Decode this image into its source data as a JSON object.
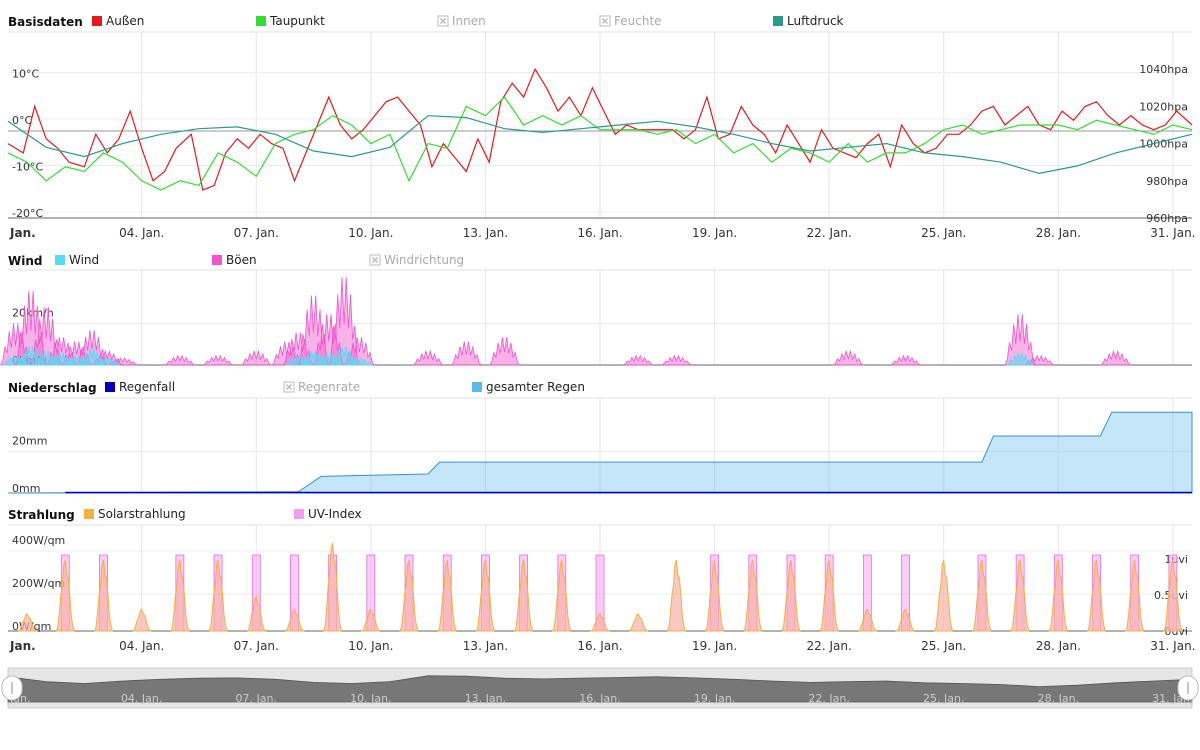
{
  "x_ticks": [
    "Jan.",
    "04. Jan.",
    "07. Jan.",
    "10. Jan.",
    "13. Jan.",
    "16. Jan.",
    "19. Jan.",
    "22. Jan.",
    "25. Jan.",
    "28. Jan.",
    "31. Jan."
  ],
  "chart_data": [
    {
      "type": "line",
      "title": "Basisdaten",
      "x_unit": "day of January",
      "xlim": [
        1,
        32
      ],
      "legend": [
        {
          "name": "Außen",
          "color": "#e31a1c",
          "enabled": true
        },
        {
          "name": "Taupunkt",
          "color": "#33dd33",
          "enabled": true
        },
        {
          "name": "Innen",
          "color": "#bbbbbb",
          "enabled": false
        },
        {
          "name": "Feuchte",
          "color": "#bbbbbb",
          "enabled": false
        },
        {
          "name": "Luftdruck",
          "color": "#2a9a8a",
          "enabled": true
        }
      ],
      "y_left": {
        "ticks": [
          "10°C",
          "0°C",
          "-10°C",
          "-20°C"
        ],
        "ylim": [
          -20,
          20
        ]
      },
      "y_right": {
        "ticks": [
          "1040hpa",
          "1020hpa",
          "1000hpa",
          "980hpa",
          "960hpa"
        ],
        "ylim": [
          960,
          1060
        ]
      },
      "series": [
        {
          "name": "Außen",
          "axis": "left",
          "color": "#e31a1c",
          "x": [
            1,
            1.4,
            1.7,
            2,
            2.3,
            2.6,
            3,
            3.3,
            3.6,
            3.9,
            4.2,
            4.5,
            4.8,
            5.1,
            5.4,
            5.8,
            6.1,
            6.4,
            6.7,
            7,
            7.3,
            7.6,
            7.9,
            8.2,
            8.5,
            8.8,
            9.1,
            9.4,
            9.7,
            10,
            10.3,
            10.6,
            10.9,
            11.2,
            11.5,
            11.8,
            12.1,
            12.4,
            12.7,
            13,
            13.3,
            13.6,
            13.9,
            14.2,
            14.5,
            14.8,
            15.1,
            15.4,
            15.7,
            16,
            16.3,
            16.6,
            16.9,
            17.2,
            17.5,
            17.8,
            18.1,
            18.4,
            18.7,
            19,
            19.3,
            19.6,
            19.9,
            20.2,
            20.5,
            20.8,
            21.1,
            21.4,
            21.7,
            22,
            22.3,
            22.6,
            22.9,
            23.2,
            23.5,
            23.8,
            24.1,
            24.4,
            24.7,
            25,
            25.3,
            25.6,
            25.9,
            26.2,
            26.5,
            26.8,
            27.1,
            27.4,
            27.7,
            28,
            28.3,
            28.6,
            28.9,
            29.2,
            29.5,
            29.8,
            30.1,
            30.4,
            30.7,
            31,
            31.3,
            31.6,
            32
          ],
          "y": [
            -4,
            -6,
            4,
            -3,
            -5,
            -8,
            -9,
            -2,
            -6,
            -3,
            3,
            -5,
            -12,
            -10,
            -5,
            -2,
            -14,
            -13,
            -6,
            -3,
            -5,
            -2,
            -4,
            -5,
            -12,
            -6,
            0,
            6,
            0,
            -3,
            -1,
            2,
            5,
            6,
            3,
            0,
            -9,
            -4,
            -7,
            -10,
            -3,
            -8,
            5,
            9,
            6,
            12,
            8,
            3,
            6,
            2,
            8,
            3,
            -2,
            0,
            -1,
            -1,
            -1,
            -1,
            -3,
            -1,
            6,
            -3,
            -2,
            4,
            0,
            -2,
            -6,
            0,
            -4,
            -8,
            -1,
            -5,
            -6,
            -7,
            -4,
            -2,
            -9,
            0,
            -4,
            -6,
            -5,
            -2,
            -2,
            0,
            3,
            4,
            0,
            2,
            4,
            0,
            -1,
            3,
            1,
            4,
            5,
            2,
            0,
            2,
            0,
            -1,
            0,
            3,
            0
          ],
          "note": "temperature °C"
        },
        {
          "name": "Taupunkt",
          "axis": "left",
          "color": "#33dd33",
          "x": [
            1,
            1.5,
            2,
            2.5,
            3,
            3.5,
            4,
            4.5,
            5,
            5.5,
            6,
            6.5,
            7,
            7.5,
            8,
            8.5,
            9,
            9.5,
            10,
            10.5,
            11,
            11.5,
            12,
            12.5,
            13,
            13.5,
            14,
            14.5,
            15,
            15.5,
            16,
            16.5,
            17,
            17.5,
            18,
            18.5,
            19,
            19.5,
            20,
            20.5,
            21,
            21.5,
            22,
            22.5,
            23,
            23.5,
            24,
            24.5,
            25,
            25.5,
            26,
            26.5,
            27,
            27.5,
            28,
            28.5,
            29,
            29.5,
            30,
            30.5,
            31,
            31.5,
            32
          ],
          "y": [
            -6,
            -8,
            -12,
            -9,
            -10,
            -6,
            -8,
            -12,
            -14,
            -12,
            -13,
            -6,
            -8,
            -11,
            -4,
            -2,
            -1,
            2,
            0,
            -4,
            -2,
            -12,
            -4,
            -5,
            4,
            2,
            6,
            0,
            2,
            0,
            2,
            -1,
            -1,
            -1,
            -2,
            -1,
            -4,
            -2,
            -6,
            -4,
            -8,
            -5,
            -6,
            -8,
            -4,
            -8,
            -6,
            -6,
            -4,
            -1,
            0,
            -2,
            -1,
            0,
            0,
            0,
            -1,
            1,
            0,
            -1,
            -2,
            0,
            -1
          ]
        },
        {
          "name": "Luftdruck",
          "axis": "right",
          "color": "#2a9a8a",
          "x": [
            1,
            2,
            3,
            4,
            5,
            6,
            7,
            8,
            9,
            10,
            11,
            12,
            13,
            14,
            15,
            16,
            17,
            18,
            19,
            20,
            21,
            22,
            23,
            24,
            25,
            26,
            27,
            28,
            29,
            30,
            31,
            32
          ],
          "y": [
            1012,
            998,
            993,
            1000,
            1005,
            1008,
            1009,
            1005,
            996,
            993,
            998,
            1015,
            1014,
            1008,
            1006,
            1008,
            1010,
            1012,
            1009,
            1005,
            1000,
            996,
            998,
            1000,
            995,
            993,
            990,
            984,
            988,
            995,
            1000,
            1005
          ]
        }
      ]
    },
    {
      "type": "area",
      "title": "Wind",
      "x_unit": "day of January",
      "xlim": [
        1,
        32
      ],
      "legend": [
        {
          "name": "Wind",
          "color": "#55dcf2",
          "enabled": true
        },
        {
          "name": "Böen",
          "color": "#ee55cc",
          "enabled": true
        },
        {
          "name": "Windrichtung",
          "color": "#bbbbbb",
          "enabled": false
        }
      ],
      "y_left": {
        "ticks": [
          "20km/h",
          "0km/h"
        ],
        "ylim": [
          0,
          40
        ]
      },
      "series": [
        {
          "name": "Böen",
          "color": "#ee55cc",
          "x": [
            1.2,
            1.6,
            2.0,
            2.4,
            2.8,
            3.2,
            3.6,
            4.0,
            5.5,
            6.5,
            7.5,
            8.3,
            8.6,
            9.0,
            9.4,
            9.8,
            10.2,
            12.0,
            13.0,
            14.0,
            17.5,
            18.5,
            23.0,
            24.5,
            27.5,
            28.0,
            30.0
          ],
          "y": [
            18,
            32,
            25,
            12,
            10,
            15,
            6,
            3,
            4,
            4,
            6,
            10,
            14,
            30,
            22,
            38,
            12,
            6,
            10,
            12,
            4,
            4,
            6,
            4,
            22,
            4,
            6
          ]
        },
        {
          "name": "Wind",
          "color": "#55dcf2",
          "x": [
            1.2,
            1.6,
            2.0,
            2.4,
            2.8,
            3.2,
            3.6,
            8.6,
            9.0,
            9.4,
            9.8,
            10.2,
            27.5
          ],
          "y": [
            4,
            8,
            6,
            5,
            4,
            7,
            3,
            4,
            6,
            5,
            8,
            3,
            5
          ]
        }
      ]
    },
    {
      "type": "area",
      "title": "Niederschlag",
      "x_unit": "day of January",
      "xlim": [
        1,
        32
      ],
      "legend": [
        {
          "name": "Regenfall",
          "color": "#0000bb",
          "enabled": true
        },
        {
          "name": "Regenrate",
          "color": "#bbbbbb",
          "enabled": false
        },
        {
          "name": "gesamter Regen",
          "color": "#5ab8ee",
          "enabled": true
        }
      ],
      "y_left": {
        "ticks": [
          "20mm",
          "0mm"
        ],
        "ylim": [
          0,
          40
        ]
      },
      "series": [
        {
          "name": "gesamter Regen",
          "color": "#5ab8ee",
          "x": [
            1,
            8.6,
            9.2,
            12.0,
            12.3,
            26.5,
            26.8,
            29.6,
            29.9,
            32
          ],
          "y": [
            0,
            0.5,
            7,
            8,
            13,
            13,
            24,
            24,
            34,
            34
          ]
        },
        {
          "name": "Regenfall",
          "color": "#0000bb",
          "x": [
            1,
            32
          ],
          "y": [
            0,
            0
          ]
        }
      ]
    },
    {
      "type": "area",
      "title": "Strahlung",
      "x_unit": "day of January",
      "xlim": [
        1,
        32
      ],
      "legend": [
        {
          "name": "Solarstrahlung",
          "color": "#f5b041",
          "enabled": true
        },
        {
          "name": "UV-Index",
          "color": "#f59bf0",
          "enabled": true
        }
      ],
      "y_left": {
        "ticks": [
          "400W/qm",
          "200W/qm",
          "0W/qm"
        ],
        "ylim": [
          0,
          400
        ]
      },
      "y_right": {
        "ticks": [
          "1uvi",
          "0.5uvi",
          "0uvi"
        ],
        "ylim": [
          0,
          1
        ]
      },
      "series": [
        {
          "name": "Solarstrahlung daily peaks",
          "color": "#f5b041",
          "x": [
            1,
            2,
            3,
            4,
            5,
            6,
            7,
            8,
            9,
            10,
            11,
            12,
            13,
            14,
            15,
            16,
            17,
            18,
            19,
            20,
            21,
            22,
            23,
            24,
            25,
            26,
            27,
            28,
            29,
            30,
            31
          ],
          "y": [
            80,
            330,
            330,
            100,
            330,
            330,
            160,
            100,
            410,
            100,
            330,
            330,
            330,
            330,
            330,
            80,
            80,
            330,
            330,
            330,
            330,
            330,
            100,
            100,
            330,
            330,
            330,
            330,
            330,
            330,
            330
          ]
        },
        {
          "name": "UV-Index daily peaks",
          "color": "#f59bf0",
          "x": [
            2,
            3,
            5,
            6,
            7,
            8,
            9,
            10,
            11,
            12,
            13,
            14,
            15,
            16,
            19,
            20,
            21,
            22,
            23,
            24,
            26,
            27,
            28,
            29,
            30,
            31
          ],
          "y": [
            1,
            1,
            1,
            1,
            1,
            1,
            1,
            1,
            1,
            1,
            1,
            1,
            1,
            1,
            1,
            1,
            1,
            1,
            1,
            1,
            1,
            1,
            1,
            1,
            1,
            1
          ]
        }
      ]
    }
  ],
  "navigator": {
    "ticks": [
      "Jan.",
      "04. Jan.",
      "07. Jan.",
      "10. Jan.",
      "13. Jan.",
      "16. Jan.",
      "19. Jan.",
      "22. Jan.",
      "25. Jan.",
      "28. Jan.",
      "31. Jan."
    ]
  }
}
